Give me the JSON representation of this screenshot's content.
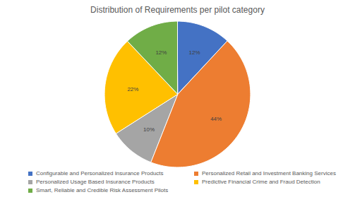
{
  "chart_data": {
    "type": "pie",
    "title": "Distribution of Requirements per pilot category",
    "categories": [
      "Configurable and Personalized Insurance Products",
      "Personalized Retail and Investment Banking Services",
      "Personalized Usage Based Insurance Products",
      "Predictive Financial Crime and Fraud Detection",
      "Smart, Reliable and Credible Risk Assessment Pilots"
    ],
    "values": [
      12,
      44,
      10,
      22,
      12
    ],
    "value_labels": [
      "12%",
      "44%",
      "10%",
      "22%",
      "12%"
    ],
    "colors": [
      "#4472c4",
      "#ed7d31",
      "#a5a5a5",
      "#ffc000",
      "#70ad47"
    ],
    "data_labels": true,
    "legend": "bottom"
  }
}
